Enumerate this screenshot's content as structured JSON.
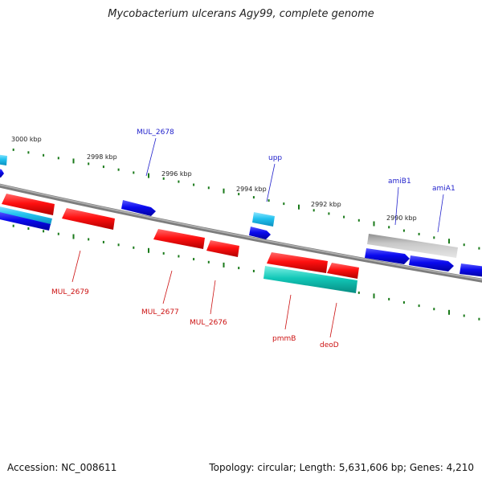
{
  "title": "Mycobacterium ulcerans Agy99, complete genome",
  "accession": "Accession: NC_008611",
  "summary": "Topology: circular; Length: 5,631,606 bp; Genes: 4,210",
  "colors": {
    "backbone": "#8a8a8a",
    "tick": "#1a7a1a",
    "forward_cds": "#0a0ad8",
    "forward_light": "#29c5ee",
    "reverse_cds": "#e60b0b",
    "reverse_teal": "#14c8b8",
    "grey_gene": "#b5b5b5",
    "label_blue": "#2222cc",
    "label_red": "#cc1111"
  },
  "scale": {
    "unit": "kbp",
    "ticks": [
      "3000 kbp",
      "2998 kbp",
      "2996 kbp",
      "2994 kbp",
      "2992 kbp",
      "2990 kbp"
    ]
  },
  "genes_above": [
    {
      "name": "MUL_2678"
    },
    {
      "name": "upp"
    },
    {
      "name": "amiB1"
    },
    {
      "name": "amiA1"
    }
  ],
  "genes_below": [
    {
      "name": "MUL_2679"
    },
    {
      "name": "MUL_2677"
    },
    {
      "name": "MUL_2676"
    },
    {
      "name": "pmmB"
    },
    {
      "name": "deoD"
    }
  ]
}
